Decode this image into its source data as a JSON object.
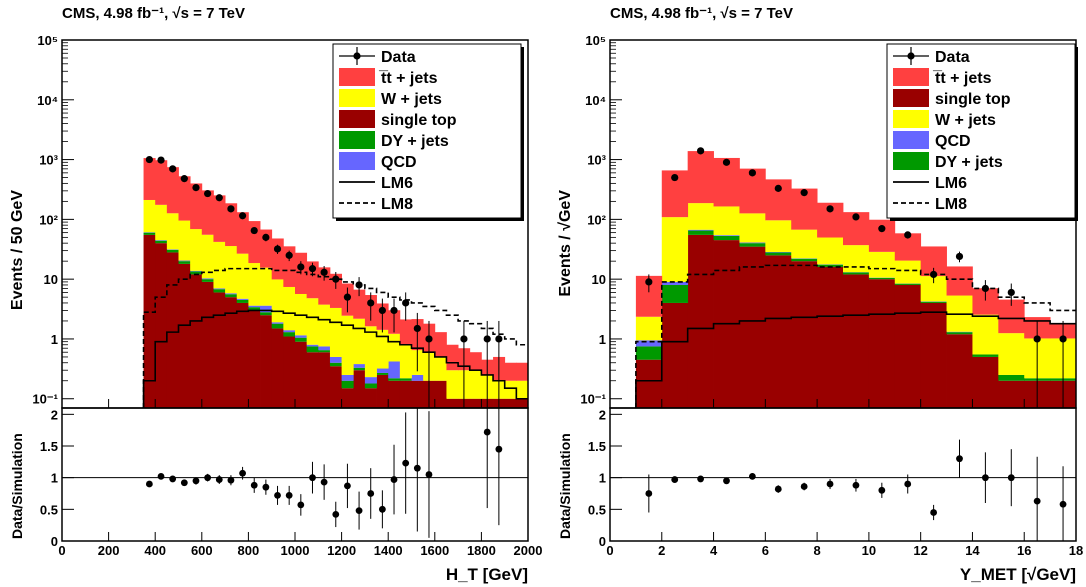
{
  "colors": {
    "ttbar": "#ff4040",
    "wjets": "#ffff00",
    "singletop": "#990000",
    "dyjets": "#009900",
    "qcd": "#6666ff",
    "data": "#000000"
  },
  "chart_data": [
    {
      "type": "area",
      "title": "CMS, 4.98 fb⁻¹, √s = 7 TeV",
      "xlabel": "H_T [GeV]",
      "ylabel": "Events / 50 GeV",
      "ratio_ylabel": "Data/Simulation",
      "xlim": [
        0,
        2000
      ],
      "ylim": [
        0.07,
        100000
      ],
      "y_scale": "log",
      "ratio_ylim": [
        0,
        2.1
      ],
      "xticks": [
        "0",
        "200",
        "400",
        "600",
        "800",
        "1000",
        "1200",
        "1400",
        "1600",
        "1800",
        "2000"
      ],
      "yticks": [
        "10⁻¹",
        "1",
        "10",
        "10²",
        "10³",
        "10⁴",
        "10⁵"
      ],
      "ratio_yticks": [
        "0",
        "0.5",
        "1",
        "1.5",
        "2"
      ],
      "legend_position": "top-right",
      "legend": [
        "Data",
        "t̅t + jets",
        "W + jets",
        "single top",
        "DY + jets",
        "QCD",
        "LM6",
        "LM8"
      ],
      "bin_edges": [
        350,
        400,
        450,
        500,
        550,
        600,
        650,
        700,
        750,
        800,
        850,
        900,
        950,
        1000,
        1050,
        1100,
        1150,
        1200,
        1250,
        1300,
        1350,
        1400,
        1450,
        1500,
        1550,
        1600,
        1650,
        1700,
        1750,
        1800,
        1850,
        1900,
        1950,
        2000
      ],
      "stack_order": [
        "singletop",
        "dyjets",
        "qcd",
        "wjets",
        "ttbar"
      ],
      "stack": {
        "singletop": [
          55,
          40,
          28,
          18,
          12,
          9,
          6,
          5,
          4,
          3,
          2.5,
          1.5,
          1.1,
          0.9,
          0.6,
          0.6,
          0.35,
          0.15,
          0.3,
          0.15,
          0.25,
          0.2,
          0.2,
          0.2,
          0.2,
          0.2,
          0.1,
          0.1,
          0.1,
          0.1,
          0.1,
          0.1,
          0.1
        ],
        "dyjets": [
          5,
          4,
          3,
          2,
          1.5,
          1,
          0.8,
          0.6,
          0.5,
          0.4,
          0.3,
          0.3,
          0.2,
          0.15,
          0.15,
          0.05,
          0.05,
          0.05,
          0.03,
          0.03,
          0.02,
          0.02,
          0.02,
          0,
          0,
          0,
          0,
          0,
          0,
          0,
          0,
          0,
          0
        ],
        "qcd": [
          1,
          1,
          0.5,
          0.5,
          0.3,
          0.3,
          0.2,
          0.2,
          0.2,
          0.2,
          0.8,
          0.1,
          0.1,
          0.1,
          0.05,
          0.1,
          0.1,
          0.05,
          0.05,
          0.05,
          0.05,
          0.2,
          0,
          0.05,
          0,
          0,
          0,
          0,
          0,
          0,
          0,
          0,
          0
        ],
        "wjets": [
          150,
          130,
          95,
          75,
          55,
          45,
          35,
          30,
          22,
          15,
          12,
          8,
          6,
          4.5,
          4,
          3,
          2.8,
          2.2,
          1.8,
          1.4,
          1.1,
          0.8,
          0.6,
          0.4,
          0.4,
          0.3,
          0.2,
          0.2,
          0.2,
          0.15,
          0.1,
          0.1,
          0.1
        ],
        "ttbar": [
          850,
          800,
          620,
          430,
          330,
          250,
          210,
          150,
          105,
          75,
          52,
          38,
          28,
          22,
          15,
          12,
          9,
          6,
          4.5,
          3.8,
          2.5,
          1.8,
          1.3,
          1.5,
          1.2,
          0.8,
          0.5,
          0.4,
          0.3,
          0.2,
          0.3,
          0.2,
          0.2
        ]
      },
      "lm6": [
        0.2,
        0.9,
        1.3,
        1.7,
        2,
        2.3,
        2.5,
        2.7,
        2.9,
        3,
        3,
        2.9,
        2.7,
        2.5,
        2.3,
        2.1,
        1.9,
        1.7,
        1.5,
        1.3,
        1.1,
        0.9,
        0.8,
        0.7,
        0.6,
        0.5,
        0.4,
        0.35,
        0.3,
        0.25,
        0.2,
        0.15,
        0.1
      ],
      "lm8": [
        2.8,
        5,
        8,
        10,
        12,
        13,
        14,
        15,
        15,
        15,
        15,
        14,
        14,
        13,
        12,
        11,
        10,
        9,
        8,
        7,
        6,
        5,
        4.5,
        4,
        3.5,
        3,
        2.5,
        2,
        1.8,
        1.5,
        1.2,
        1,
        0.8
      ],
      "data_x": [
        375,
        425,
        475,
        525,
        575,
        625,
        675,
        725,
        775,
        825,
        875,
        925,
        975,
        1025,
        1075,
        1125,
        1175,
        1225,
        1275,
        1325,
        1375,
        1425,
        1475,
        1525,
        1575,
        1725,
        1825,
        1875
      ],
      "data_y": [
        1000,
        980,
        700,
        480,
        340,
        270,
        230,
        150,
        115,
        65,
        50,
        32,
        25,
        16,
        15,
        13,
        10,
        5,
        8,
        4,
        3,
        3,
        4,
        1.5,
        1,
        1,
        1,
        1
      ],
      "ratio_x": [
        375,
        425,
        475,
        525,
        575,
        625,
        675,
        725,
        775,
        825,
        875,
        925,
        975,
        1025,
        1075,
        1125,
        1175,
        1225,
        1275,
        1325,
        1375,
        1425,
        1475,
        1525,
        1575,
        1825,
        1875
      ],
      "ratio_y": [
        0.9,
        1.02,
        0.98,
        0.92,
        0.95,
        1.0,
        0.97,
        0.96,
        1.07,
        0.88,
        0.85,
        0.72,
        0.72,
        0.57,
        1.0,
        0.93,
        0.42,
        0.87,
        0.48,
        0.75,
        0.5,
        0.97,
        1.23,
        1.15,
        1.05,
        1.72,
        1.45
      ],
      "ratio_err": [
        0.03,
        0.03,
        0.04,
        0.05,
        0.06,
        0.06,
        0.07,
        0.08,
        0.1,
        0.12,
        0.12,
        0.15,
        0.15,
        0.17,
        0.25,
        0.28,
        0.2,
        0.35,
        0.3,
        0.4,
        0.3,
        0.55,
        0.8,
        1.0,
        1.0,
        1.2,
        1.2
      ]
    },
    {
      "type": "area",
      "title": "CMS, 4.98 fb⁻¹, √s = 7 TeV",
      "xlabel": "Y_MET [√GeV]",
      "ylabel": "Events / √GeV",
      "ratio_ylabel": "Data/Simulation",
      "xlim": [
        0,
        18
      ],
      "ylim": [
        0.07,
        100000
      ],
      "y_scale": "log",
      "ratio_ylim": [
        0,
        2.1
      ],
      "xticks": [
        "0",
        "2",
        "4",
        "6",
        "8",
        "10",
        "12",
        "14",
        "16",
        "18"
      ],
      "yticks": [
        "10⁻¹",
        "1",
        "10",
        "10²",
        "10³",
        "10⁴",
        "10⁵"
      ],
      "ratio_yticks": [
        "0",
        "0.5",
        "1",
        "1.5",
        "2"
      ],
      "legend_position": "top-right",
      "legend": [
        "Data",
        "t̅t + jets",
        "single top",
        "W + jets",
        "QCD",
        "DY + jets",
        "LM6",
        "LM8"
      ],
      "bin_edges": [
        1,
        2,
        3,
        4,
        5,
        6,
        7,
        8,
        9,
        10,
        11,
        12,
        13,
        14,
        15,
        16,
        17,
        18
      ],
      "stack_order": [
        "singletop",
        "dyjets",
        "qcd",
        "wjets",
        "ttbar"
      ],
      "stack": {
        "singletop": [
          0.45,
          4,
          55,
          45,
          35,
          25,
          20,
          16,
          12,
          10,
          8,
          4,
          1.2,
          0.5,
          0.2,
          0.2,
          0.2
        ],
        "dyjets": [
          0.3,
          4,
          10,
          8,
          5,
          3,
          2,
          1.5,
          1,
          0.5,
          0.4,
          0.2,
          0.1,
          0.05,
          0.05,
          0.02,
          0.02
        ],
        "qcd": [
          0.2,
          1,
          2,
          1.5,
          1,
          0.5,
          0.3,
          0.2,
          0.1,
          0.1,
          0.05,
          0.05,
          0.02,
          0,
          0,
          0,
          0
        ],
        "wjets": [
          1.4,
          100,
          120,
          110,
          85,
          68,
          45,
          32,
          24,
          18,
          12,
          7,
          4,
          2,
          1,
          0.8,
          0.8
        ],
        "ttbar": [
          9,
          550,
          1200,
          900,
          580,
          370,
          260,
          140,
          95,
          70,
          38,
          24,
          11,
          4.5,
          3.3,
          1.3,
          0.8
        ]
      },
      "lm6": [
        0.2,
        0.9,
        1.5,
        1.8,
        2.0,
        2.2,
        2.3,
        2.4,
        2.5,
        2.6,
        2.7,
        2.8,
        2.6,
        2.4,
        2.2,
        2.0,
        1.8
      ],
      "lm8": [
        0.9,
        9,
        12,
        14,
        16,
        17,
        17,
        16,
        16,
        15,
        14,
        12,
        10,
        7,
        5,
        4,
        3
      ],
      "data_x": [
        1.5,
        2.5,
        3.5,
        4.5,
        5.5,
        6.5,
        7.5,
        8.5,
        9.5,
        10.5,
        11.5,
        12.5,
        13.5,
        14.5,
        15.5,
        16.5,
        17.5
      ],
      "data_y": [
        9,
        500,
        1400,
        900,
        600,
        330,
        280,
        150,
        110,
        70,
        55,
        12,
        24,
        7,
        6,
        1,
        1
      ],
      "ratio_x": [
        1.5,
        2.5,
        3.5,
        4.5,
        5.5,
        6.5,
        7.5,
        8.5,
        9.5,
        10.5,
        11.5,
        12.5,
        13.5,
        14.5,
        15.5,
        16.5,
        17.5
      ],
      "ratio_y": [
        0.75,
        0.97,
        0.98,
        0.95,
        1.02,
        0.82,
        0.86,
        0.9,
        0.88,
        0.8,
        0.9,
        0.45,
        1.3,
        1.0,
        1.0,
        0.63,
        0.58
      ],
      "ratio_err": [
        0.3,
        0.04,
        0.03,
        0.04,
        0.05,
        0.06,
        0.06,
        0.08,
        0.1,
        0.12,
        0.15,
        0.12,
        0.3,
        0.4,
        0.45,
        0.7,
        0.6
      ]
    }
  ]
}
